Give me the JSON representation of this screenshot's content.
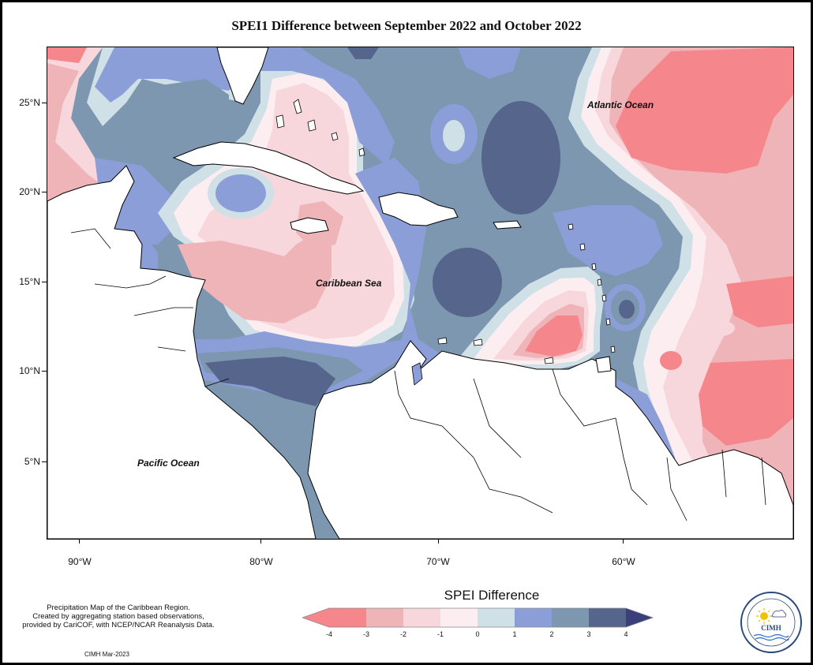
{
  "title": "SPEI1 Difference between September 2022 and October 2022",
  "labels": {
    "atlantic": "Atlantic Ocean",
    "caribbean": "Caribbean Sea",
    "pacific": "Pacific Ocean"
  },
  "lat_ticks": [
    "25°N",
    "20°N",
    "15°N",
    "10°N",
    "5°N"
  ],
  "lon_ticks": [
    "90°W",
    "80°W",
    "70°W",
    "60°W"
  ],
  "legend": {
    "title": "SPEI Difference",
    "ticks": [
      "-4",
      "-3",
      "-2",
      "-1",
      "0",
      "1",
      "2",
      "3",
      "4"
    ],
    "colors": [
      "#f5868c",
      "#eeb4b7",
      "#f8d7dc",
      "#fcedf0",
      "#cfe0e7",
      "#8c9ed8",
      "#7d97b0",
      "#55658b"
    ]
  },
  "info": {
    "line1": "Precipitation Map of the Caribbean Region.",
    "line2": "Created by aggregating station based observations,",
    "line3": "provided by CariCOF, with NCEP/NCAR Reanalysis Data."
  },
  "credit": "CIMH Mar-2023",
  "logo": {
    "text": "CIMH"
  }
}
